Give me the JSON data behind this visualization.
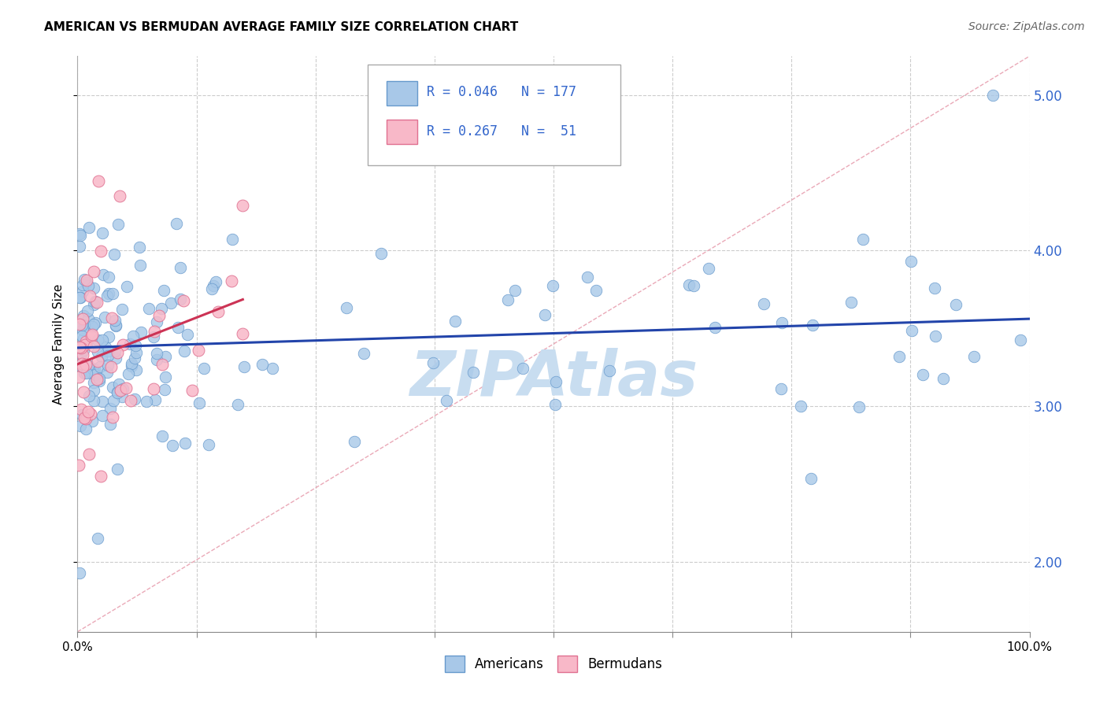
{
  "title": "AMERICAN VS BERMUDAN AVERAGE FAMILY SIZE CORRELATION CHART",
  "source": "Source: ZipAtlas.com",
  "ylabel": "Average Family Size",
  "xlim": [
    0,
    100
  ],
  "ylim": [
    1.55,
    5.25
  ],
  "yticks": [
    2.0,
    3.0,
    4.0,
    5.0
  ],
  "xtick_positions": [
    0,
    12.5,
    25,
    37.5,
    50,
    62.5,
    75,
    87.5,
    100
  ],
  "xtick_labels_show": [
    "0.0%",
    "",
    "",
    "",
    "",
    "",
    "",
    "",
    "100.0%"
  ],
  "american_color": "#a8c8e8",
  "american_edge": "#6699cc",
  "bermudan_color": "#f8b8c8",
  "bermudan_edge": "#e07090",
  "legend_R_american": "0.046",
  "legend_N_american": "177",
  "legend_R_bermudan": "0.267",
  "legend_N_bermudan": "51",
  "reg_line_american_color": "#2244aa",
  "reg_line_bermudan_color": "#cc3355",
  "diag_line_color": "#e8a0b0",
  "background_color": "#ffffff",
  "grid_color": "#cccccc",
  "watermark_text": "ZIPAtlas",
  "watermark_color": "#c8ddf0",
  "title_fontsize": 11,
  "source_fontsize": 10,
  "ytick_color": "#3366cc"
}
